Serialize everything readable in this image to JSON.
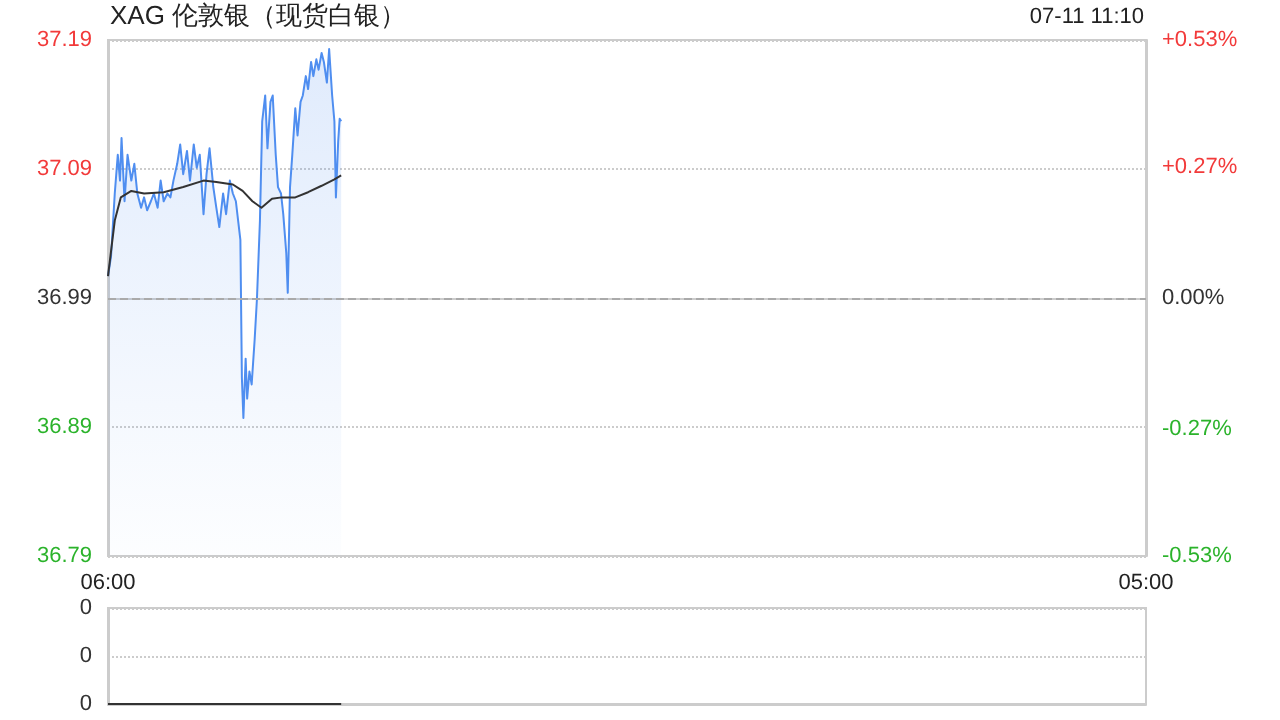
{
  "chart_data": [
    {
      "type": "line",
      "title": "XAG 伦敦银（现货白银）",
      "annotations": [
        "07-11 11:10"
      ],
      "xlim": [
        "--07-11T06:00",
        "--07-12T05:00"
      ],
      "xticks": [
        {
          "value": "--07-11T06:00",
          "label": "06:00"
        },
        {
          "value": "--07-12T05:00",
          "label": "05:00"
        }
      ],
      "ylim": [
        36.79,
        37.19
      ],
      "yticks": [
        36.79,
        36.89,
        36.99,
        37.09,
        37.19
      ],
      "y2lim": [
        -0.53,
        0.53
      ],
      "y2ticks": [
        {
          "value": -0.53,
          "label": "-0.53%"
        },
        {
          "value": -0.27,
          "label": "-0.27%"
        },
        {
          "value": 0,
          "label": "0.00%"
        },
        {
          "value": 0.27,
          "label": "+0.27%"
        },
        {
          "value": 0.53,
          "label": "+0.53%"
        }
      ],
      "grid": "y",
      "marker": "none",
      "ref_lines": [
        {
          "axis": "y",
          "value": 36.99,
          "color": "#aaaaaa",
          "line_style": "dashed"
        }
      ],
      "series": [
        {
          "type": "area",
          "color": "#4f8ef0",
          "x": [
            "--07-11T06:00",
            "--07-11T06:04",
            "--07-11T06:09",
            "--07-11T06:13",
            "--07-11T06:16",
            "--07-11T06:18",
            "--07-11T06:22",
            "--07-11T06:26",
            "--07-11T06:31",
            "--07-11T06:35",
            "--07-11T06:39",
            "--07-11T06:44",
            "--07-11T06:48",
            "--07-11T06:52",
            "--07-11T06:57",
            "--07-11T07:01",
            "--07-11T07:06",
            "--07-11T07:10",
            "--07-11T07:14",
            "--07-11T07:19",
            "--07-11T07:23",
            "--07-11T07:27",
            "--07-11T07:32",
            "--07-11T07:36",
            "--07-11T07:40",
            "--07-11T07:45",
            "--07-11T07:49",
            "--07-11T07:54",
            "--07-11T07:58",
            "--07-11T08:02",
            "--07-11T08:07",
            "--07-11T08:11",
            "--07-11T08:15",
            "--07-11T08:20",
            "--07-11T08:24",
            "--07-11T08:28",
            "--07-11T08:33",
            "--07-11T08:37",
            "--07-11T08:42",
            "--07-11T08:46",
            "--07-11T08:50",
            "--07-11T08:53",
            "--07-11T08:56",
            "--07-11T08:58",
            "--07-11T09:00",
            "--07-11T09:03",
            "--07-11T09:05",
            "--07-11T09:08",
            "--07-11T09:11",
            "--07-11T09:15",
            "--07-11T09:18",
            "--07-11T09:22",
            "--07-11T09:25",
            "--07-11T09:29",
            "--07-11T09:32",
            "--07-11T09:36",
            "--07-11T09:39",
            "--07-11T09:43",
            "--07-11T09:46",
            "--07-11T09:50",
            "--07-11T09:53",
            "--07-11T09:57",
            "--07-11T09:59",
            "--07-11T10:02",
            "--07-11T10:05",
            "--07-11T10:09",
            "--07-11T10:12",
            "--07-11T10:16",
            "--07-11T10:19",
            "--07-11T10:23",
            "--07-11T10:26",
            "--07-11T10:30",
            "--07-11T10:33",
            "--07-11T10:37",
            "--07-11T10:40",
            "--07-11T10:44",
            "--07-11T10:47",
            "--07-11T10:51",
            "--07-11T10:54",
            "--07-11T10:58",
            "--07-11T11:01",
            "--07-11T11:03",
            "--07-11T11:06",
            "--07-11T11:08",
            "--07-11T11:10"
          ],
          "values": [
            37.007,
            37.022,
            37.071,
            37.101,
            37.081,
            37.114,
            37.065,
            37.101,
            37.081,
            37.094,
            37.071,
            37.06,
            37.068,
            37.058,
            37.065,
            37.071,
            37.06,
            37.081,
            37.065,
            37.071,
            37.068,
            37.081,
            37.094,
            37.109,
            37.086,
            37.104,
            37.081,
            37.109,
            37.091,
            37.101,
            37.055,
            37.086,
            37.106,
            37.076,
            37.06,
            37.045,
            37.071,
            37.055,
            37.081,
            37.071,
            37.065,
            37.05,
            37.035,
            36.928,
            36.897,
            36.943,
            36.912,
            36.933,
            36.923,
            36.958,
            36.989,
            37.05,
            37.127,
            37.147,
            37.106,
            37.142,
            37.147,
            37.101,
            37.076,
            37.071,
            37.055,
            37.025,
            36.994,
            37.076,
            37.101,
            37.137,
            37.116,
            37.142,
            37.147,
            37.162,
            37.152,
            37.173,
            37.162,
            37.175,
            37.167,
            37.18,
            37.173,
            37.157,
            37.183,
            37.147,
            37.127,
            37.068,
            37.111,
            37.129,
            37.127
          ]
        },
        {
          "type": "line",
          "color": "#333333",
          "x": [
            "--07-11T06:00",
            "--07-11T06:09",
            "--07-11T06:17",
            "--07-11T06:31",
            "--07-11T06:48",
            "--07-11T07:14",
            "--07-11T07:40",
            "--07-11T08:07",
            "--07-11T08:24",
            "--07-11T08:46",
            "--07-11T08:59",
            "--07-11T09:12",
            "--07-11T09:24",
            "--07-11T09:38",
            "--07-11T09:51",
            "--07-11T10:09",
            "--07-11T10:26",
            "--07-11T10:44",
            "--07-11T11:01",
            "--07-11T11:10"
          ],
          "values": [
            37.007,
            37.05,
            37.068,
            37.073,
            37.071,
            37.072,
            37.076,
            37.081,
            37.08,
            37.078,
            37.073,
            37.065,
            37.06,
            37.067,
            37.068,
            37.068,
            37.072,
            37.077,
            37.082,
            37.085
          ]
        }
      ]
    },
    {
      "type": "line",
      "xlim": [
        "--07-11T06:00",
        "--07-12T05:00"
      ],
      "ylim": [
        0,
        0.4
      ],
      "yticks": [
        {
          "value": 0,
          "label": "0"
        },
        {
          "value": 0.2,
          "label": "0"
        },
        {
          "value": 0.4,
          "label": "0"
        }
      ],
      "tick_labels": "y",
      "grid": "y",
      "marker": "none",
      "series": [
        {
          "type": "line",
          "color": "#333333",
          "x": [
            "--07-11T06:00",
            "--07-11T11:10"
          ],
          "values": [
            0,
            0
          ]
        }
      ]
    }
  ]
}
